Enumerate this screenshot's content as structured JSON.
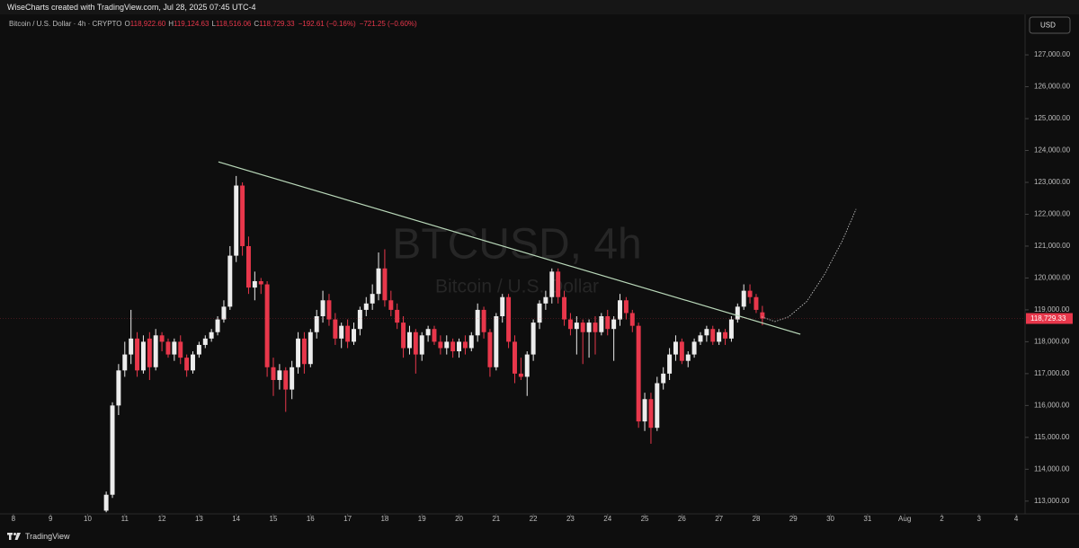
{
  "header": "WiseCharts created with TradingView.com, Jul 28, 2025 07:45 UTC-4",
  "symbol": "Bitcoin / U.S. Dollar · 4h · CRYPTO",
  "legend": [
    {
      "key": "O",
      "value": "118,922.60"
    },
    {
      "key": "H",
      "value": "119,124.63"
    },
    {
      "key": "L",
      "value": "118,516.06"
    },
    {
      "key": "C",
      "value": "118,729.33"
    }
  ],
  "changes": [
    "−192.61 (−0.16%)",
    "−721.25 (−0.60%)"
  ],
  "footer": "TradingView",
  "chart_data": {
    "type": "candlestick",
    "watermark": "BTCUSD, 4h",
    "watermark_subtitle": "Bitcoin / U.S. Dollar",
    "currency": "USD",
    "up_color": "#ececec",
    "down_color": "#e8374b",
    "xlim": [
      7.64,
      35.24
    ],
    "ylim": [
      112600,
      127650
    ],
    "xticks": [
      8,
      9,
      10,
      11,
      12,
      13,
      14,
      15,
      16,
      17,
      18,
      19,
      20,
      21,
      22,
      23,
      24,
      25,
      26,
      27,
      28,
      29,
      30,
      31,
      {
        "value": 32,
        "label": "Aug"
      },
      {
        "value": 33,
        "label": "2"
      },
      {
        "value": 34,
        "label": "3"
      },
      {
        "value": 35,
        "label": "4"
      }
    ],
    "yticks": [
      {
        "value": 113000,
        "label": "113,000.00"
      },
      {
        "value": 114000,
        "label": "114,000.00"
      },
      {
        "value": 115000,
        "label": "115,000.00"
      },
      {
        "value": 116000,
        "label": "116,000.00"
      },
      {
        "value": 117000,
        "label": "117,000.00"
      },
      {
        "value": 118000,
        "label": "118,000.00"
      },
      {
        "value": 119000,
        "label": "119,000.00"
      },
      {
        "value": 120000,
        "label": "120,000.00"
      },
      {
        "value": 121000,
        "label": "121,000.00"
      },
      {
        "value": 122000,
        "label": "122,000.00"
      },
      {
        "value": 123000,
        "label": "123,000.00"
      },
      {
        "value": 124000,
        "label": "124,000.00"
      },
      {
        "value": 125000,
        "label": "125,000.00"
      },
      {
        "value": 126000,
        "label": "126,000.00"
      },
      {
        "value": 127000,
        "label": "127,000.00"
      }
    ],
    "x": [
      10.5,
      10.667,
      10.833,
      11,
      11.167,
      11.333,
      11.5,
      11.667,
      11.833,
      12,
      12.167,
      12.333,
      12.5,
      12.667,
      12.833,
      13,
      13.167,
      13.333,
      13.5,
      13.667,
      13.833,
      14,
      14.167,
      14.333,
      14.5,
      14.667,
      14.833,
      15,
      15.167,
      15.333,
      15.5,
      15.667,
      15.833,
      16,
      16.167,
      16.333,
      16.5,
      16.667,
      16.833,
      17,
      17.167,
      17.333,
      17.5,
      17.667,
      17.833,
      18,
      18.167,
      18.333,
      18.5,
      18.667,
      18.833,
      19,
      19.167,
      19.333,
      19.5,
      19.667,
      19.833,
      20,
      20.167,
      20.333,
      20.5,
      20.667,
      20.833,
      21,
      21.167,
      21.333,
      21.5,
      21.667,
      21.833,
      22,
      22.167,
      22.333,
      22.5,
      22.667,
      22.833,
      23,
      23.167,
      23.333,
      23.5,
      23.667,
      23.833,
      24,
      24.167,
      24.333,
      24.5,
      24.667,
      24.833,
      25,
      25.167,
      25.333,
      25.5,
      25.667,
      25.833,
      26,
      26.167,
      26.333,
      26.5,
      26.667,
      26.833,
      27,
      27.167,
      27.333,
      27.5,
      27.667,
      27.833,
      28,
      28.167
    ],
    "open": [
      112700,
      113200,
      116000,
      117100,
      117600,
      118100,
      117100,
      118100,
      117200,
      118200,
      118000,
      117600,
      118000,
      117500,
      117100,
      117600,
      117900,
      118100,
      118300,
      118700,
      119100,
      120700,
      122900,
      121000,
      119700,
      119900,
      119800,
      117200,
      116800,
      117100,
      116500,
      117200,
      118100,
      117300,
      118300,
      118800,
      119300,
      118700,
      118100,
      118500,
      118000,
      118400,
      119000,
      119200,
      119500,
      120300,
      119300,
      119000,
      118600,
      117800,
      118300,
      117600,
      118200,
      118400,
      118000,
      117800,
      118000,
      117700,
      118000,
      117800,
      118200,
      119000,
      118300,
      117200,
      118800,
      119400,
      118000,
      117000,
      116900,
      117600,
      118600,
      119200,
      119400,
      120200,
      119400,
      118700,
      118400,
      118600,
      118300,
      118600,
      118300,
      118800,
      118400,
      118700,
      119300,
      118900,
      118500,
      115500,
      116200,
      115300,
      116700,
      117000,
      117600,
      118000,
      117400,
      117600,
      118000,
      118200,
      118400,
      118000,
      118300,
      118100,
      118700,
      119100,
      119600,
      119400,
      118922.6
    ],
    "high": [
      113300,
      116100,
      117300,
      118000,
      119000,
      118300,
      118200,
      118300,
      118400,
      118300,
      118100,
      118100,
      118200,
      117600,
      117700,
      118000,
      118200,
      118400,
      118800,
      119300,
      121000,
      123200,
      123000,
      121300,
      120200,
      120000,
      119900,
      117500,
      117300,
      117200,
      117400,
      118300,
      118300,
      118400,
      119000,
      119600,
      119500,
      118900,
      118600,
      118700,
      118600,
      119100,
      119400,
      119800,
      120800,
      120900,
      119600,
      119200,
      118800,
      118500,
      118400,
      118300,
      118500,
      118500,
      118200,
      118200,
      118100,
      118100,
      118200,
      118300,
      119200,
      119100,
      118400,
      118900,
      119500,
      119500,
      118200,
      117500,
      117700,
      118700,
      119300,
      119600,
      120300,
      120300,
      119600,
      118900,
      118800,
      118700,
      118700,
      118800,
      118900,
      119000,
      118800,
      119500,
      119400,
      119000,
      118600,
      116400,
      116400,
      116900,
      117200,
      117800,
      118200,
      118100,
      117700,
      118100,
      118300,
      118500,
      118500,
      118400,
      118400,
      118800,
      119200,
      119800,
      119800,
      119500,
      119124.63
    ],
    "low": [
      112650,
      113100,
      115700,
      116900,
      117300,
      116900,
      117000,
      116800,
      117100,
      117700,
      117500,
      117400,
      117300,
      116900,
      117000,
      117500,
      117800,
      118000,
      118200,
      118600,
      119000,
      120500,
      120700,
      119500,
      119300,
      119500,
      116900,
      116300,
      116500,
      115800,
      116200,
      117000,
      117000,
      117200,
      118100,
      118600,
      118500,
      117900,
      117800,
      117800,
      117900,
      118200,
      118800,
      119000,
      119300,
      119100,
      118800,
      118400,
      117500,
      117600,
      117000,
      117400,
      118000,
      117900,
      117600,
      117600,
      117500,
      117500,
      117600,
      117700,
      118000,
      118100,
      116900,
      117100,
      118600,
      117800,
      116700,
      116800,
      116300,
      117400,
      118400,
      119000,
      119200,
      119200,
      118500,
      118200,
      117600,
      117300,
      117500,
      117600,
      118200,
      118200,
      117400,
      118500,
      118700,
      118300,
      115300,
      115200,
      114800,
      115200,
      116500,
      116800,
      117400,
      117300,
      117200,
      117500,
      117900,
      118000,
      117900,
      117900,
      117900,
      118000,
      118600,
      119000,
      119200,
      118900,
      118516.06
    ],
    "close": [
      113200,
      116000,
      117100,
      117600,
      118100,
      117100,
      118000,
      117200,
      118200,
      118000,
      117600,
      118000,
      117500,
      117100,
      117600,
      117900,
      118100,
      118300,
      118700,
      119100,
      120700,
      122900,
      121000,
      119700,
      119900,
      119800,
      117200,
      116800,
      117100,
      116500,
      117200,
      118100,
      117300,
      118300,
      118800,
      119300,
      118700,
      118100,
      118500,
      118000,
      118400,
      119000,
      119200,
      119500,
      120300,
      119300,
      119000,
      118600,
      117800,
      118300,
      117600,
      118200,
      118400,
      118000,
      117800,
      118000,
      117700,
      118000,
      117800,
      118200,
      119000,
      118300,
      117200,
      118800,
      119400,
      118000,
      117000,
      116900,
      117600,
      118600,
      119200,
      119400,
      120200,
      119400,
      118700,
      118400,
      118600,
      118300,
      118600,
      118300,
      118800,
      118400,
      118700,
      119300,
      118900,
      118500,
      115500,
      116200,
      115300,
      116700,
      117000,
      117600,
      118000,
      117400,
      117600,
      118000,
      118200,
      118400,
      118000,
      118300,
      118100,
      118700,
      119100,
      119600,
      119400,
      119000,
      118729.33
    ],
    "last_price": {
      "value": 118729.33,
      "label": "118,729.33"
    },
    "trendline": {
      "color": "#b9d8b9",
      "x": [
        13.52,
        29.19
      ],
      "y": [
        123643,
        118236
      ]
    },
    "projection": {
      "color": "#cfcfcf",
      "x": [
        28.15,
        28.51,
        28.87,
        29.36,
        29.84,
        30.32,
        30.69
      ],
      "y": [
        118777,
        118635,
        118777,
        119261,
        120114,
        121167,
        122163
      ]
    }
  }
}
